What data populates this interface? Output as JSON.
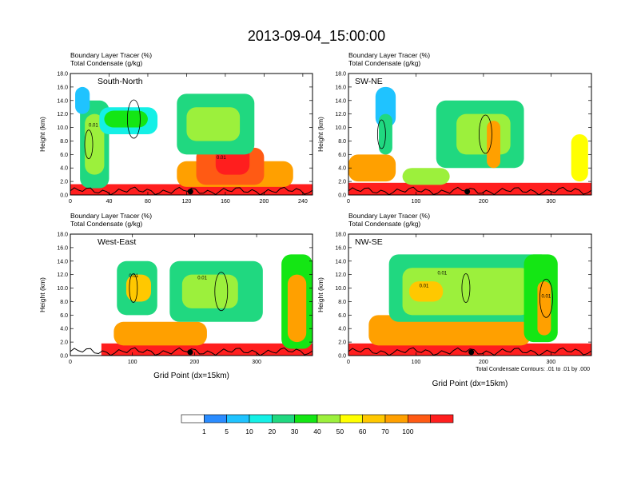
{
  "figure": {
    "title": "2013-09-04_15:00:00",
    "contour_note": "Total Condensate Contours: .01 to .01 by .000",
    "colorbar": {
      "levels": [
        "1",
        "5",
        "10",
        "20",
        "30",
        "40",
        "50",
        "60",
        "70",
        "100"
      ],
      "colors": [
        "#ffffff",
        "#2a8cff",
        "#1fc3ff",
        "#14f0e6",
        "#20d880",
        "#14e614",
        "#9cf03c",
        "#ffff00",
        "#ffc800",
        "#ffa000",
        "#ff5a14",
        "#ff1e1e"
      ]
    }
  },
  "chart_data": [
    {
      "type": "heatmap",
      "id": "south-north",
      "panel_label": "South-North",
      "left_title_1": "Boundary Layer Tracer   (%)",
      "left_title_2": "Total Condensate   (g/kg)",
      "ylabel": "Height (km)",
      "xlabel": "",
      "xlim": [
        0,
        250
      ],
      "ylim": [
        0,
        18
      ],
      "xticks": [
        0,
        40,
        80,
        120,
        160,
        200,
        240
      ],
      "yticks": [
        "0.0",
        "2.0",
        "4.0",
        "6.0",
        "8.0",
        "10.0",
        "12.0",
        "14.0",
        "16.0",
        "18.0"
      ],
      "marker_x": 124,
      "contour_labels": [
        "0.01",
        "0.01"
      ],
      "blobs": [
        {
          "x": [
            0,
            250
          ],
          "y": [
            0,
            1.6
          ],
          "l": 11
        },
        {
          "x": [
            0,
            250
          ],
          "y": [
            0,
            0.9
          ],
          "l": 12
        },
        {
          "x": [
            110,
            230
          ],
          "y": [
            1.2,
            5
          ],
          "l": 9
        },
        {
          "x": [
            130,
            200
          ],
          "y": [
            1.5,
            7
          ],
          "l": 10
        },
        {
          "x": [
            150,
            185
          ],
          "y": [
            3,
            8
          ],
          "l": 11
        },
        {
          "x": [
            10,
            40
          ],
          "y": [
            1,
            14
          ],
          "l": 4
        },
        {
          "x": [
            15,
            35
          ],
          "y": [
            3,
            12
          ],
          "l": 6
        },
        {
          "x": [
            30,
            90
          ],
          "y": [
            9,
            13
          ],
          "l": 3
        },
        {
          "x": [
            35,
            80
          ],
          "y": [
            10,
            12.5
          ],
          "l": 5
        },
        {
          "x": [
            110,
            190
          ],
          "y": [
            6,
            15
          ],
          "l": 4
        },
        {
          "x": [
            120,
            175
          ],
          "y": [
            8,
            13
          ],
          "l": 6
        },
        {
          "x": [
            5,
            20
          ],
          "y": [
            12,
            16
          ],
          "l": 2
        }
      ]
    },
    {
      "type": "heatmap",
      "id": "sw-ne",
      "panel_label": "SW-NE",
      "left_title_1": "Boundary Layer Tracer   (%)",
      "left_title_2": "Total Condensate   (g/kg)",
      "ylabel": "Height (km)",
      "xlabel": "",
      "xlim": [
        0,
        360
      ],
      "ylim": [
        0,
        18
      ],
      "xticks": [
        0,
        100,
        200,
        300
      ],
      "yticks": [
        "0.0",
        "2.0",
        "4.0",
        "6.0",
        "8.0",
        "10.0",
        "12.0",
        "14.0",
        "16.0",
        "18.0"
      ],
      "marker_x": 176,
      "contour_labels": [],
      "blobs": [
        {
          "x": [
            0,
            360
          ],
          "y": [
            0,
            1.8
          ],
          "l": 11
        },
        {
          "x": [
            0,
            360
          ],
          "y": [
            0,
            0.9
          ],
          "l": 12
        },
        {
          "x": [
            0,
            70
          ],
          "y": [
            2,
            6
          ],
          "l": 9
        },
        {
          "x": [
            40,
            70
          ],
          "y": [
            10,
            16
          ],
          "l": 2
        },
        {
          "x": [
            45,
            65
          ],
          "y": [
            6,
            12
          ],
          "l": 4
        },
        {
          "x": [
            130,
            260
          ],
          "y": [
            4,
            14
          ],
          "l": 4
        },
        {
          "x": [
            160,
            240
          ],
          "y": [
            6,
            12
          ],
          "l": 6
        },
        {
          "x": [
            205,
            225
          ],
          "y": [
            4,
            11
          ],
          "l": 9
        },
        {
          "x": [
            330,
            355
          ],
          "y": [
            2,
            9
          ],
          "l": 7
        },
        {
          "x": [
            80,
            150
          ],
          "y": [
            1.5,
            4
          ],
          "l": 6
        }
      ]
    },
    {
      "type": "heatmap",
      "id": "west-east",
      "panel_label": "West-East",
      "left_title_1": "Boundary Layer Tracer   (%)",
      "left_title_2": "Total Condensate   (g/kg)",
      "ylabel": "Height (km)",
      "xlabel": "Grid Point (dx=15km)",
      "xlim": [
        0,
        390
      ],
      "ylim": [
        0,
        18
      ],
      "xticks": [
        0,
        100,
        200,
        300
      ],
      "yticks": [
        "0.0",
        "2.0",
        "4.0",
        "6.0",
        "8.0",
        "10.0",
        "12.0",
        "14.0",
        "16.0",
        "18.0"
      ],
      "marker_x": 193,
      "contour_labels": [
        "0.01",
        "0.01"
      ],
      "blobs": [
        {
          "x": [
            50,
            390
          ],
          "y": [
            0,
            1.8
          ],
          "l": 11
        },
        {
          "x": [
            50,
            390
          ],
          "y": [
            0,
            0.9
          ],
          "l": 12
        },
        {
          "x": [
            70,
            220
          ],
          "y": [
            1.5,
            5
          ],
          "l": 9
        },
        {
          "x": [
            75,
            140
          ],
          "y": [
            6,
            14
          ],
          "l": 4
        },
        {
          "x": [
            90,
            130
          ],
          "y": [
            8,
            12
          ],
          "l": 8
        },
        {
          "x": [
            160,
            310
          ],
          "y": [
            5,
            14
          ],
          "l": 4
        },
        {
          "x": [
            180,
            270
          ],
          "y": [
            7,
            12
          ],
          "l": 6
        },
        {
          "x": [
            340,
            390
          ],
          "y": [
            1,
            15
          ],
          "l": 5
        },
        {
          "x": [
            350,
            380
          ],
          "y": [
            2,
            12
          ],
          "l": 9
        }
      ]
    },
    {
      "type": "heatmap",
      "id": "nw-se",
      "panel_label": "NW-SE",
      "left_title_1": "Boundary Layer Tracer   (%)",
      "left_title_2": "Total Condensate   (g/kg)",
      "ylabel": "Height (km)",
      "xlabel": "Grid Point (dx=15km)",
      "xlim": [
        0,
        360
      ],
      "ylim": [
        0,
        18
      ],
      "xticks": [
        0,
        100,
        200,
        300
      ],
      "yticks": [
        "0.0",
        "2.0",
        "4.0",
        "6.0",
        "8.0",
        "10.0",
        "12.0",
        "14.0",
        "16.0",
        "18.0"
      ],
      "marker_x": 182,
      "contour_labels": [
        "0.01",
        "0.01",
        "0.01"
      ],
      "blobs": [
        {
          "x": [
            0,
            360
          ],
          "y": [
            0,
            1.8
          ],
          "l": 11
        },
        {
          "x": [
            0,
            360
          ],
          "y": [
            0,
            0.9
          ],
          "l": 12
        },
        {
          "x": [
            30,
            270
          ],
          "y": [
            1.5,
            6
          ],
          "l": 9
        },
        {
          "x": [
            60,
            300
          ],
          "y": [
            5,
            15
          ],
          "l": 4
        },
        {
          "x": [
            80,
            270
          ],
          "y": [
            6,
            13
          ],
          "l": 6
        },
        {
          "x": [
            90,
            140
          ],
          "y": [
            8,
            11
          ],
          "l": 8
        },
        {
          "x": [
            260,
            310
          ],
          "y": [
            2,
            15
          ],
          "l": 5
        },
        {
          "x": [
            280,
            300
          ],
          "y": [
            3,
            11
          ],
          "l": 9
        }
      ]
    }
  ]
}
